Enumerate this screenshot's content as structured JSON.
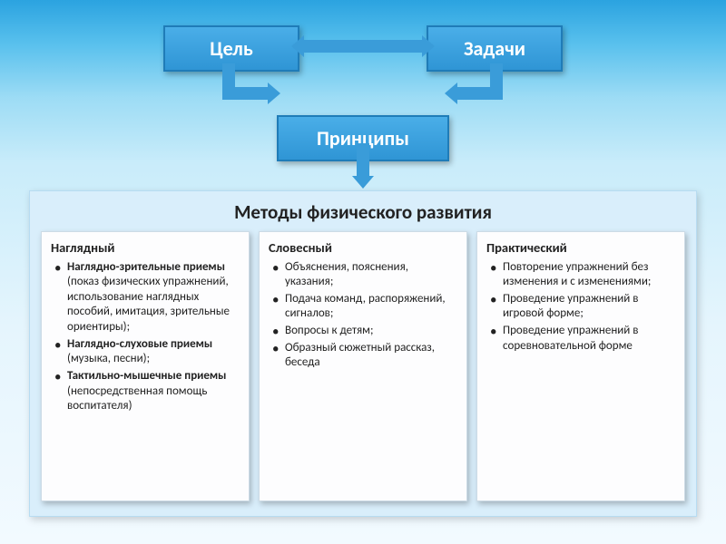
{
  "colors": {
    "block_gradient_top": "#4aaee8",
    "block_gradient_bottom": "#2f95d5",
    "block_border": "#1f7cb8",
    "arrow": "#3a9cd9",
    "panel_bg": "#d9eefb",
    "card_bg": "#fdfdfe",
    "text": "#222222",
    "bg_gradient": [
      "#2ba3e0",
      "#58c0ed",
      "#9ddcf5",
      "#c9ecfa",
      "#e5f5fd",
      "#f2faff"
    ]
  },
  "typography": {
    "block_fontsize": 22,
    "methods_title_fontsize": 21,
    "card_heading_fontsize": 14.5,
    "card_body_fontsize": 13,
    "font_family": "Calibri"
  },
  "flow": {
    "type": "flowchart",
    "nodes": [
      {
        "id": "goal",
        "label": "Цель",
        "row": 0,
        "col": 0
      },
      {
        "id": "tasks",
        "label": "Задачи",
        "row": 0,
        "col": 1
      },
      {
        "id": "principles",
        "label": "Принципы",
        "row": 1,
        "col": 0.5
      },
      {
        "id": "methods",
        "label": "Методы физического развития",
        "row": 2,
        "col": 0.5
      }
    ],
    "edges": [
      {
        "from": "goal",
        "to": "tasks",
        "style": "double-headed"
      },
      {
        "from": "goal",
        "to": "principles",
        "style": "elbow"
      },
      {
        "from": "tasks",
        "to": "principles",
        "style": "elbow"
      },
      {
        "from": "principles",
        "to": "methods",
        "style": "down-arrow"
      }
    ]
  },
  "top": {
    "goal": "Цель",
    "tasks": "Задачи",
    "principles": "Принципы"
  },
  "methods": {
    "title": "Методы физического развития",
    "columns": [
      {
        "heading": "Наглядный",
        "items": [
          {
            "bold": "Наглядно-зрительные приемы",
            "rest": " (показ физических упражнений, использование наглядных пособий, имитация, зрительные ориентиры);"
          },
          {
            "bold": "Наглядно-слуховые приемы",
            "rest": " (музыка, песни);"
          },
          {
            "bold": "Тактильно-мышечные приемы",
            "rest": " (непосредственная помощь воспитателя)"
          }
        ]
      },
      {
        "heading": "Словесный",
        "items": [
          {
            "text": "Объяснения, пояснения, указания;"
          },
          {
            "text": "Подача команд, распоряжений, сигналов;"
          },
          {
            "text": "Вопросы к детям;"
          },
          {
            "text": "Образный сюжетный рассказ, беседа"
          }
        ]
      },
      {
        "heading": "Практический",
        "items": [
          {
            "text": "Повторение упражнений без изменения и с изменениями;"
          },
          {
            "text": "Проведение упражнений в игровой форме;"
          },
          {
            "text": "Проведение упражнений в соревновательной форме"
          }
        ]
      }
    ]
  }
}
